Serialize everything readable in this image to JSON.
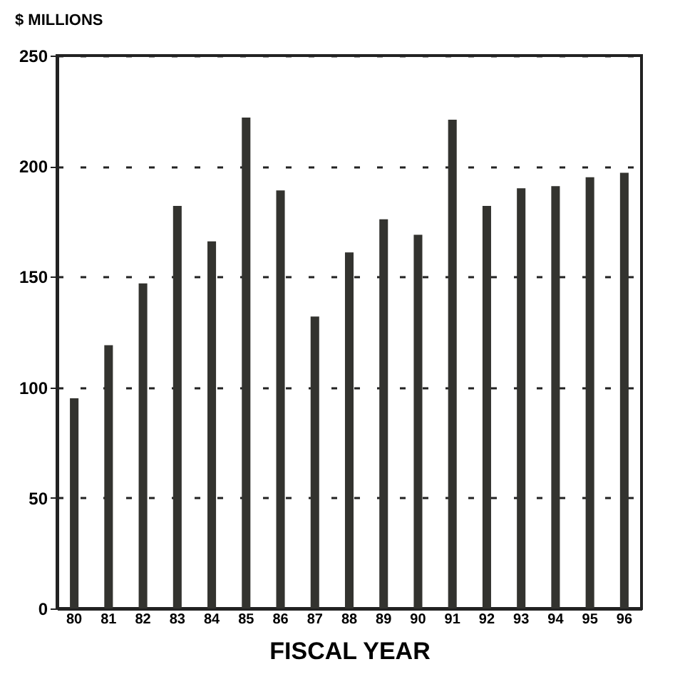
{
  "chart_data": {
    "type": "bar",
    "ylabel": "$ MILLIONS",
    "xlabel": "FISCAL YEAR",
    "categories": [
      "80",
      "81",
      "82",
      "83",
      "84",
      "85",
      "86",
      "87",
      "88",
      "89",
      "90",
      "91",
      "92",
      "93",
      "94",
      "95",
      "96"
    ],
    "values": [
      95,
      119,
      147,
      182,
      166,
      222,
      189,
      132,
      161,
      176,
      169,
      221,
      182,
      190,
      191,
      195,
      197
    ],
    "color": "#33332f",
    "ylim": [
      0,
      250
    ],
    "yticks": [
      0,
      50,
      100,
      150,
      200,
      250
    ],
    "grid": "y"
  }
}
